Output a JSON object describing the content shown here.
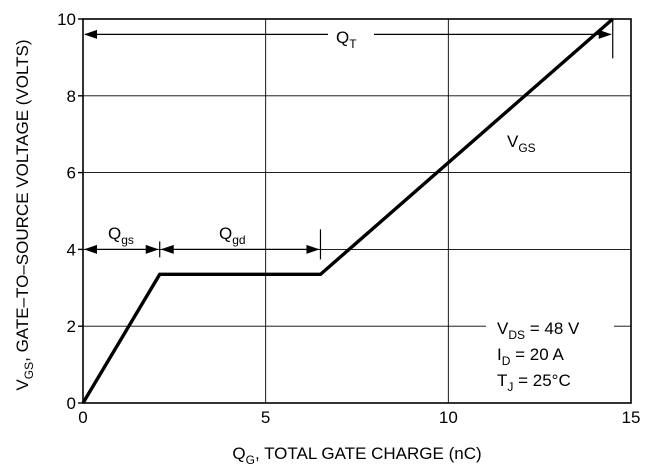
{
  "chart_data": {
    "type": "line",
    "xlabel": {
      "main": "Q",
      "sub": "G",
      "rest": ", TOTAL GATE CHARGE (nC)"
    },
    "ylabel": {
      "main": "V",
      "sub": "GS",
      "rest": ", GATE–TO–SOURCE VOLTAGE (VOLTS)"
    },
    "xlim": [
      0,
      15
    ],
    "ylim": [
      0,
      10
    ],
    "xticks": [
      0,
      5,
      10,
      15
    ],
    "yticks": [
      0,
      2,
      4,
      6,
      8,
      10
    ],
    "grid": true,
    "series": [
      {
        "name": "VGS",
        "label": {
          "main": "V",
          "sub": "GS"
        },
        "x": [
          0,
          2.1,
          6.5,
          14.5
        ],
        "y": [
          0,
          3.35,
          3.35,
          10
        ]
      }
    ],
    "annotations": {
      "qt": {
        "main": "Q",
        "sub": "T",
        "x_from": 0,
        "x_to": 14.5,
        "y": 9.6
      },
      "qgs": {
        "main": "Q",
        "sub": "gs",
        "x_from": 0,
        "x_to": 2.1,
        "y": 4.0
      },
      "qgd": {
        "main": "Q",
        "sub": "gd",
        "x_from": 2.1,
        "x_to": 6.5,
        "y": 4.0
      }
    },
    "conditions": [
      {
        "main": "V",
        "sub": "DS",
        "rest": " = 48 V"
      },
      {
        "main": "I",
        "sub": "D",
        "rest": " = 20 A"
      },
      {
        "main": "T",
        "sub": "J",
        "rest": " = 25°C"
      }
    ]
  }
}
